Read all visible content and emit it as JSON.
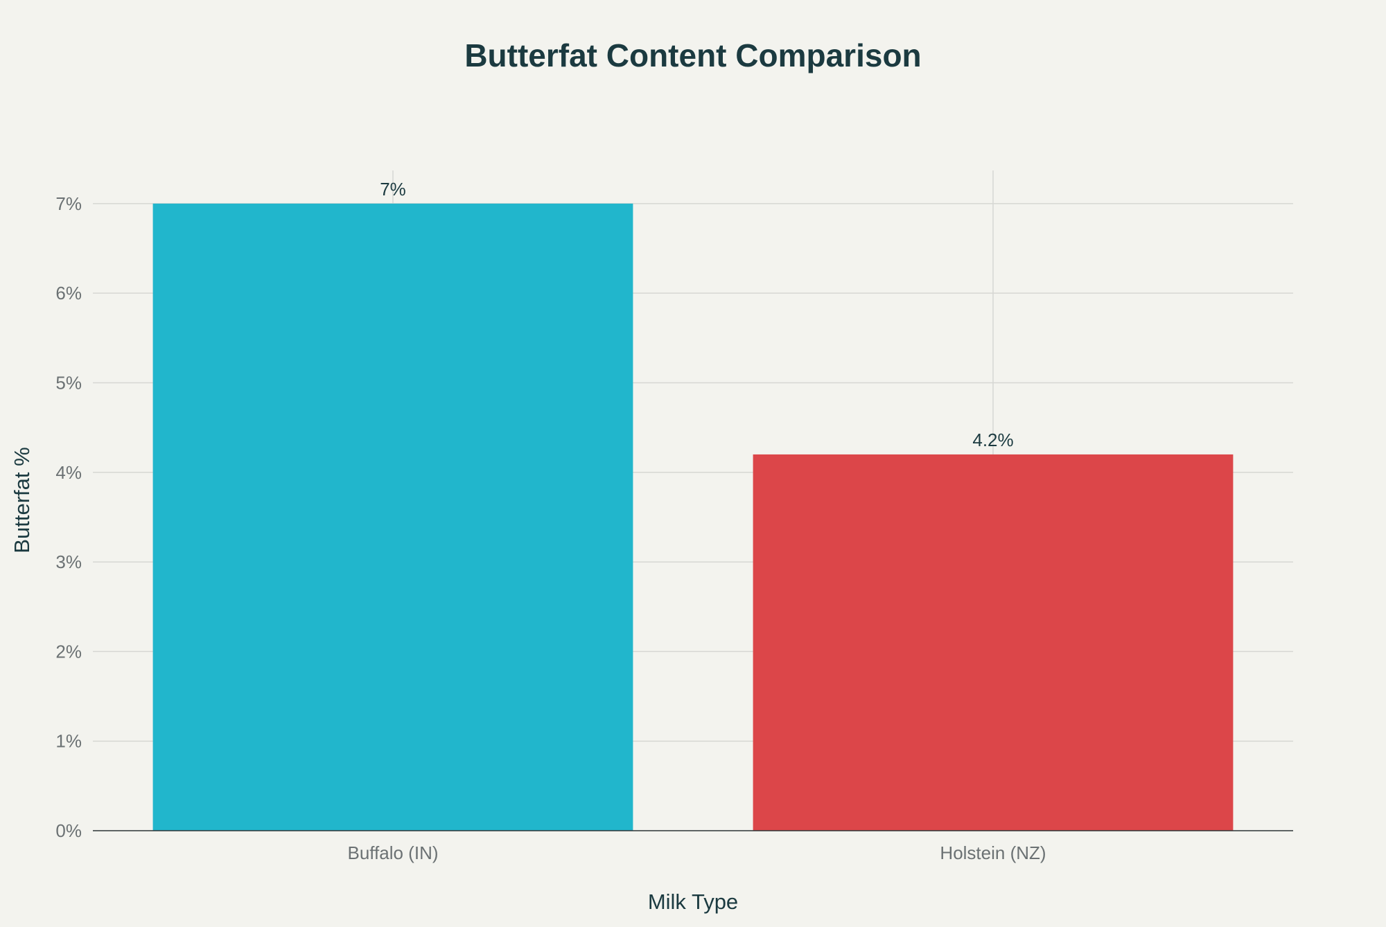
{
  "chart_data": {
    "type": "bar",
    "title": "Butterfat Content Comparison",
    "xlabel": "Milk Type",
    "ylabel": "Butterfat %",
    "categories": [
      "Buffalo (IN)",
      "Holstein (NZ)"
    ],
    "values": [
      7,
      4.2
    ],
    "value_labels": [
      "7%",
      "4.2%"
    ],
    "colors": [
      "#21b6cc",
      "#dc4649"
    ],
    "ylim": [
      0,
      7.37
    ],
    "yticks": [
      0,
      1,
      2,
      3,
      4,
      5,
      6,
      7
    ],
    "ytick_labels": [
      "0%",
      "1%",
      "2%",
      "3%",
      "4%",
      "5%",
      "6%",
      "7%"
    ],
    "grid": true,
    "legend": "none"
  }
}
